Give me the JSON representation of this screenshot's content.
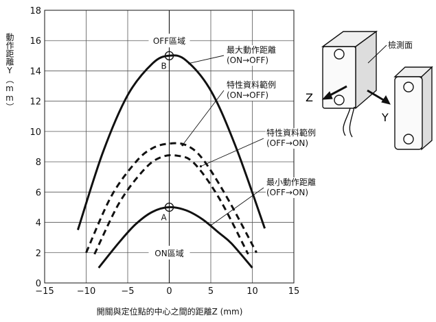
{
  "chart_data": {
    "type": "line",
    "xlabel": "開關與定位點的中心之間的距離Z (mm)",
    "ylabel": "動作距離Y（mm）",
    "xlim": [
      -15,
      15
    ],
    "ylim": [
      0,
      18
    ],
    "x_ticks": [
      "−15",
      "−10",
      "−5",
      "0",
      "5",
      "10",
      "15"
    ],
    "y_ticks": [
      "0",
      "2",
      "4",
      "6",
      "8",
      "10",
      "12",
      "14",
      "16",
      "18"
    ],
    "grid": true,
    "series": [
      {
        "name": "最大動作距離 (ON→OFF)",
        "style": "solid",
        "x": [
          -11,
          -8,
          -5,
          -2,
          0,
          2,
          5,
          8,
          11.5
        ],
        "y": [
          3.5,
          8.6,
          12.4,
          14.5,
          15.0,
          14.7,
          12.7,
          9.0,
          3.6
        ]
      },
      {
        "name": "特性資料範例 (ON→OFF)",
        "style": "dashed",
        "x": [
          -10,
          -7,
          -4,
          -2,
          0,
          2,
          4,
          7,
          10.5
        ],
        "y": [
          2.0,
          5.7,
          8.0,
          8.9,
          9.2,
          9.1,
          8.2,
          5.6,
          2.0
        ]
      },
      {
        "name": "特性資料範例 (OFF→ON)",
        "style": "dashed",
        "x": [
          -9,
          -6,
          -3,
          -1,
          1,
          3,
          6,
          9.5
        ],
        "y": [
          1.9,
          5.3,
          7.5,
          8.3,
          8.4,
          7.9,
          5.6,
          1.9
        ]
      },
      {
        "name": "最小動作距離 (OFF→ON)",
        "style": "solid",
        "x": [
          -8.5,
          -6,
          -4,
          -2,
          0,
          2,
          4,
          6,
          7.5,
          10
        ],
        "y": [
          1.0,
          2.7,
          3.9,
          4.7,
          5.0,
          4.8,
          4.2,
          3.3,
          2.6,
          1.0
        ]
      }
    ],
    "points": [
      {
        "label": "B",
        "x": 0,
        "y": 15
      },
      {
        "label": "A",
        "x": 0,
        "y": 5
      }
    ],
    "regions": [
      {
        "label": "OFF區域",
        "x": 0,
        "y": 16
      },
      {
        "label": "ON區域",
        "x": 0,
        "y": 2
      }
    ],
    "annotations": [
      {
        "lines": [
          "最大動作距離",
          "(ON→OFF)"
        ],
        "target_x": 2.4,
        "target_y": 14.5
      },
      {
        "lines": [
          "特性資料範例",
          "(ON→OFF)"
        ],
        "target_x": 1.6,
        "target_y": 9.1
      },
      {
        "lines": [
          "特性資料範例",
          "(OFF→ON)"
        ],
        "target_x": 3.8,
        "target_y": 7.7
      },
      {
        "lines": [
          "最小動作距離",
          "(OFF→ON)"
        ],
        "target_x": 5.0,
        "target_y": 3.8
      }
    ]
  },
  "diagram": {
    "sensor_face_label": "檢測面",
    "axis_z": "Z",
    "axis_y": "Y"
  }
}
